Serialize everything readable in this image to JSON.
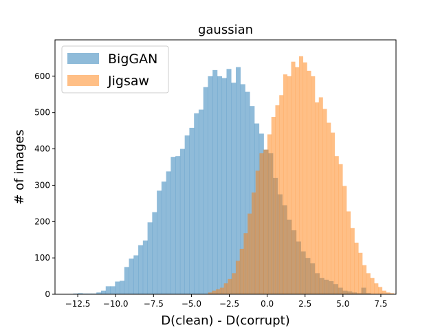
{
  "chart_data": {
    "type": "histogram",
    "title": "gaussian",
    "xlabel": "D(clean) - D(corrupt)",
    "ylabel": "# of images",
    "xlim": [
      -14.0,
      8.5
    ],
    "ylim": [
      0,
      700
    ],
    "xticks": [
      -12.5,
      -10.0,
      -7.5,
      -5.0,
      -2.5,
      0.0,
      2.5,
      5.0,
      7.5
    ],
    "xtick_labels": [
      "−12.5",
      "−10.0",
      "−7.5",
      "−5.0",
      "−2.5",
      "0.0",
      "2.5",
      "5.0",
      "7.5"
    ],
    "yticks": [
      0,
      100,
      200,
      300,
      400,
      500,
      600
    ],
    "ytick_labels": [
      "0",
      "100",
      "200",
      "300",
      "400",
      "500",
      "600"
    ],
    "legend": {
      "position": "upper-left",
      "entries": [
        "BigGAN",
        "Jigsaw"
      ]
    },
    "grid": false,
    "series": [
      {
        "name": "BigGAN",
        "color": "#1f77b4",
        "alpha": 0.5,
        "bin_start": -12.8,
        "bin_width": 0.3066,
        "counts": [
          2,
          3,
          2,
          2,
          2,
          5,
          10,
          22,
          22,
          35,
          37,
          75,
          98,
          107,
          135,
          148,
          198,
          226,
          285,
          310,
          338,
          378,
          380,
          400,
          437,
          458,
          498,
          508,
          570,
          600,
          617,
          600,
          595,
          620,
          582,
          625,
          578,
          557,
          518,
          470,
          442,
          398,
          388,
          320,
          275,
          245,
          205,
          176,
          145,
          118,
          100,
          85,
          58,
          45,
          40,
          36,
          28,
          18,
          10,
          8,
          5,
          3,
          18,
          3
        ]
      },
      {
        "name": "Jigsaw",
        "color": "#ff7f0e",
        "alpha": 0.5,
        "bin_start": -3.9,
        "bin_width": 0.261,
        "counts": [
          5,
          10,
          14,
          18,
          30,
          42,
          58,
          92,
          125,
          168,
          222,
          280,
          340,
          388,
          398,
          440,
          488,
          520,
          548,
          605,
          600,
          640,
          625,
          655,
          638,
          615,
          600,
          528,
          542,
          510,
          472,
          445,
          380,
          358,
          298,
          228,
          182,
          142,
          114,
          80,
          58,
          45,
          30,
          20,
          10,
          5,
          3
        ]
      }
    ]
  }
}
